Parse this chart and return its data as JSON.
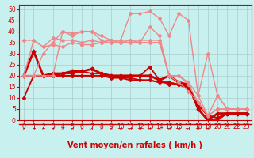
{
  "background_color": "#c8f0ee",
  "grid_color": "#aacccc",
  "xlabel": "Vent moyen/en rafales ( km/h )",
  "xlim": [
    -0.5,
    23.5
  ],
  "ylim": [
    0,
    52
  ],
  "yticks": [
    0,
    5,
    10,
    15,
    20,
    25,
    30,
    35,
    40,
    45,
    50
  ],
  "xticks": [
    0,
    1,
    2,
    3,
    4,
    5,
    6,
    7,
    8,
    9,
    10,
    11,
    12,
    13,
    14,
    15,
    16,
    17,
    18,
    19,
    20,
    21,
    22,
    23
  ],
  "series": [
    {
      "x": [
        0,
        1,
        2,
        3,
        4,
        5,
        6,
        7,
        8,
        9,
        10,
        11,
        12,
        13,
        14,
        15,
        16,
        17,
        18,
        19,
        20,
        21,
        22,
        23
      ],
      "y": [
        20,
        20,
        20,
        20,
        20,
        20,
        20,
        20,
        20,
        19,
        19,
        18,
        18,
        18,
        17,
        17,
        16,
        15,
        7,
        2,
        1,
        3,
        3,
        3
      ],
      "color": "#cc0000",
      "lw": 1.3,
      "marker": "D",
      "ms": 2
    },
    {
      "x": [
        0,
        1,
        2,
        3,
        4,
        5,
        6,
        7,
        8,
        9,
        10,
        11,
        12,
        13,
        14,
        15,
        16,
        17,
        18,
        19,
        20,
        21,
        22,
        23
      ],
      "y": [
        20,
        20,
        20,
        20,
        20,
        20,
        20,
        20,
        20,
        20,
        19,
        19,
        18,
        18,
        17,
        17,
        16,
        14,
        7,
        2,
        1,
        3,
        3,
        3
      ],
      "color": "#cc0000",
      "lw": 1.3,
      "marker": "D",
      "ms": 2
    },
    {
      "x": [
        0,
        1,
        2,
        3,
        4,
        5,
        6,
        7,
        8,
        9,
        10,
        11,
        12,
        13,
        14,
        15,
        16,
        17,
        18,
        19,
        20,
        21,
        22,
        23
      ],
      "y": [
        10,
        20,
        20,
        20,
        21,
        21,
        22,
        21,
        21,
        20,
        20,
        20,
        20,
        24,
        18,
        16,
        16,
        15,
        5,
        0,
        0,
        3,
        3,
        3
      ],
      "color": "#cc0000",
      "lw": 1.3,
      "marker": "D",
      "ms": 2
    },
    {
      "x": [
        0,
        1,
        2,
        3,
        4,
        5,
        6,
        7,
        8,
        9,
        10,
        11,
        12,
        13,
        14,
        15,
        16,
        17,
        18,
        19,
        20,
        21,
        22,
        23
      ],
      "y": [
        20,
        31,
        20,
        21,
        21,
        22,
        22,
        23,
        21,
        20,
        20,
        20,
        20,
        20,
        18,
        20,
        17,
        16,
        5,
        0,
        3,
        3,
        3,
        3
      ],
      "color": "#cc0000",
      "lw": 2.0,
      "marker": "D",
      "ms": 2.5
    },
    {
      "x": [
        0,
        1,
        2,
        3,
        4,
        5,
        6,
        7,
        8,
        9,
        10,
        11,
        12,
        13,
        14,
        15,
        16,
        17,
        18,
        19,
        20,
        21,
        22,
        23
      ],
      "y": [
        36,
        36,
        33,
        34,
        33,
        35,
        34,
        34,
        35,
        35,
        35,
        35,
        35,
        35,
        35,
        20,
        17,
        13,
        8,
        2,
        5,
        5,
        5,
        5
      ],
      "color": "#ee8888",
      "lw": 1.0,
      "marker": "D",
      "ms": 2
    },
    {
      "x": [
        0,
        1,
        2,
        3,
        4,
        5,
        6,
        7,
        8,
        9,
        10,
        11,
        12,
        13,
        14,
        15,
        16,
        17,
        18,
        19,
        20,
        21,
        22,
        23
      ],
      "y": [
        20,
        36,
        33,
        37,
        36,
        36,
        35,
        36,
        35,
        36,
        36,
        36,
        36,
        36,
        36,
        20,
        20,
        16,
        8,
        2,
        5,
        5,
        5,
        5
      ],
      "color": "#ee8888",
      "lw": 1.0,
      "marker": "D",
      "ms": 2
    },
    {
      "x": [
        0,
        1,
        2,
        3,
        4,
        5,
        6,
        7,
        8,
        9,
        10,
        11,
        12,
        13,
        14,
        15,
        16,
        17,
        18,
        19,
        20,
        21,
        22,
        23
      ],
      "y": [
        20,
        20,
        30,
        35,
        40,
        39,
        40,
        40,
        36,
        36,
        35,
        36,
        35,
        42,
        38,
        20,
        20,
        17,
        11,
        2,
        11,
        5,
        5,
        5
      ],
      "color": "#ee8888",
      "lw": 1.0,
      "marker": "D",
      "ms": 2
    },
    {
      "x": [
        0,
        1,
        2,
        3,
        4,
        5,
        6,
        7,
        8,
        9,
        10,
        11,
        12,
        13,
        14,
        15,
        16,
        17,
        18,
        19,
        20,
        21,
        22,
        23
      ],
      "y": [
        20,
        20,
        20,
        20,
        40,
        38,
        40,
        40,
        38,
        36,
        36,
        48,
        48,
        49,
        46,
        38,
        48,
        45,
        11,
        30,
        11,
        5,
        5,
        5
      ],
      "color": "#ee8888",
      "lw": 1.0,
      "marker": "D",
      "ms": 2
    }
  ],
  "axis_fontsize": 7,
  "tick_fontsize": 5.5,
  "red_color": "#cc0000"
}
